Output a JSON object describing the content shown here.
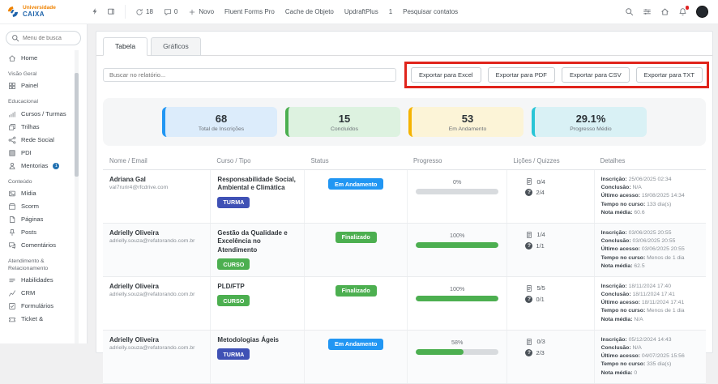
{
  "topbar": {
    "logo": {
      "line1": "Universidade",
      "line2": "CAIXA"
    },
    "menu": [
      {
        "id": "updates",
        "icon": "refresh-icon",
        "label": "18"
      },
      {
        "id": "comments",
        "icon": "comment-icon",
        "label": "0"
      },
      {
        "id": "new",
        "icon": "plus-icon",
        "label": "Novo"
      },
      {
        "id": "fluent-forms-pro",
        "label": "Fluent Forms Pro"
      },
      {
        "id": "cache-de-objeto",
        "label": "Cache de Objeto"
      },
      {
        "id": "updraftplus",
        "label": "UpdraftPlus"
      },
      {
        "id": "notification-count",
        "label": "1"
      },
      {
        "id": "pesquisar-contatos",
        "label": "Pesquisar contatos"
      }
    ]
  },
  "sidebar": {
    "search_placeholder": "Menu de busca",
    "sections": [
      {
        "heading": "",
        "items": [
          {
            "id": "home",
            "icon": "home-icon",
            "label": "Home"
          }
        ]
      },
      {
        "heading": "Visão Geral",
        "items": [
          {
            "id": "painel",
            "icon": "dashboard-icon",
            "label": "Painel"
          }
        ]
      },
      {
        "heading": "Educacional",
        "items": [
          {
            "id": "cursos-turmas",
            "icon": "chart-bars-icon",
            "label": "Cursos / Turmas"
          },
          {
            "id": "trilhas",
            "icon": "layers-icon",
            "label": "Trilhas"
          },
          {
            "id": "rede-social",
            "icon": "network-icon",
            "label": "Rede Social"
          },
          {
            "id": "pdi",
            "icon": "square-icon",
            "label": "PDI"
          },
          {
            "id": "mentorias",
            "icon": "person-icon",
            "label": "Mentorias",
            "badge": "1"
          }
        ]
      },
      {
        "heading": "Conteúdo",
        "items": [
          {
            "id": "midia",
            "icon": "media-icon",
            "label": "Mídia"
          },
          {
            "id": "scorm",
            "icon": "box-icon",
            "label": "Scorm"
          },
          {
            "id": "paginas",
            "icon": "page-icon",
            "label": "Páginas"
          },
          {
            "id": "posts",
            "icon": "pin-icon",
            "label": "Posts"
          },
          {
            "id": "comentarios",
            "icon": "comments-icon",
            "label": "Comentários"
          }
        ]
      },
      {
        "heading": "Atendimento & Relacionamento",
        "items": [
          {
            "id": "habilidades",
            "icon": "list-icon",
            "label": "Habilidades"
          },
          {
            "id": "crm",
            "icon": "trend-icon",
            "label": "CRM"
          },
          {
            "id": "formularios",
            "icon": "form-icon",
            "label": "Formulários"
          },
          {
            "id": "ticket",
            "icon": "ticket-icon",
            "label": "Ticket &"
          }
        ]
      }
    ]
  },
  "main": {
    "tabs": [
      {
        "id": "tabela",
        "label": "Tabela",
        "active": true
      },
      {
        "id": "graficos",
        "label": "Gráficos",
        "active": false
      }
    ],
    "search_placeholder": "Buscar no relatório...",
    "export_buttons": [
      {
        "id": "excel",
        "label": "Exportar para Excel"
      },
      {
        "id": "pdf",
        "label": "Exportar para PDF"
      },
      {
        "id": "csv",
        "label": "Exportar para CSV"
      },
      {
        "id": "txt",
        "label": "Exportar para TXT"
      }
    ],
    "annotation_color": "#e0241b",
    "stats": [
      {
        "id": "inscricoes",
        "value": "68",
        "label": "Total de Inscrições",
        "bg": "#dcecfb",
        "accent": "#2196f3"
      },
      {
        "id": "concluidos",
        "value": "15",
        "label": "Concluídos",
        "bg": "#ddf2e0",
        "accent": "#4caf50"
      },
      {
        "id": "em-andamento",
        "value": "53",
        "label": "Em Andamento",
        "bg": "#fcf4d7",
        "accent": "#f5b301"
      },
      {
        "id": "progresso-medio",
        "value": "29.1%",
        "label": "Progresso Médio",
        "bg": "#d9f1f5",
        "accent": "#29c5d6"
      }
    ],
    "table": {
      "columns": [
        "Nome / Email",
        "Curso / Tipo",
        "Status",
        "Progresso",
        "Lições / Quizzes",
        "Detalhes"
      ],
      "detail_labels": {
        "enrolled": "Inscrição:",
        "completed": "Conclusão:",
        "last_access": "Último acesso:",
        "time": "Tempo no curso:",
        "grade": "Nota média:"
      },
      "rows": [
        {
          "name": "Adriana Gal",
          "email": "val7rurir4@rfcdrive.com",
          "course": "Responsabilidade Social, Ambiental e Climática",
          "type": "TURMA",
          "type_color": "#3f51b5",
          "status": "Em Andamento",
          "status_color": "#2196f3",
          "progress_pct": 0,
          "progress_label": "0%",
          "lessons": "0/4",
          "quizzes": "2/4",
          "details": {
            "enrolled": "25/06/2025 02:34",
            "completed": "N/A",
            "last_access": "19/08/2025 14:34",
            "time": "133 dia(s)",
            "grade": "60.6"
          }
        },
        {
          "name": "Adrielly Oliveira",
          "email": "adrielly.souza@refatorando.com.br",
          "course": "Gestão da Qualidade e Excelência no Atendimento",
          "type": "CURSO",
          "type_color": "#4caf50",
          "status": "Finalizado",
          "status_color": "#4caf50",
          "progress_pct": 100,
          "progress_label": "100%",
          "lessons": "1/4",
          "quizzes": "1/1",
          "details": {
            "enrolled": "03/06/2025 20:55",
            "completed": "03/06/2025 20:55",
            "last_access": "03/06/2025 20:55",
            "time": "Menos de 1 dia",
            "grade": "62.5"
          }
        },
        {
          "name": "Adrielly Oliveira",
          "email": "adrielly.souza@refatorando.com.br",
          "course": "PLD/FTP",
          "type": "CURSO",
          "type_color": "#4caf50",
          "status": "Finalizado",
          "status_color": "#4caf50",
          "progress_pct": 100,
          "progress_label": "100%",
          "lessons": "5/5",
          "quizzes": "0/1",
          "details": {
            "enrolled": "18/11/2024 17:40",
            "completed": "18/11/2024 17:41",
            "last_access": "18/11/2024 17:41",
            "time": "Menos de 1 dia",
            "grade": "N/A"
          }
        },
        {
          "name": "Adrielly Oliveira",
          "email": "adrielly.souza@refatorando.com.br",
          "course": "Metodologias Ágeis",
          "type": "TURMA",
          "type_color": "#3f51b5",
          "status": "Em Andamento",
          "status_color": "#2196f3",
          "progress_pct": 58,
          "progress_label": "58%",
          "lessons": "0/3",
          "quizzes": "2/3",
          "details": {
            "enrolled": "05/12/2024 14:43",
            "completed": "N/A",
            "last_access": "04/07/2025 15:56",
            "time": "335 dia(s)",
            "grade": "0"
          }
        }
      ]
    }
  }
}
